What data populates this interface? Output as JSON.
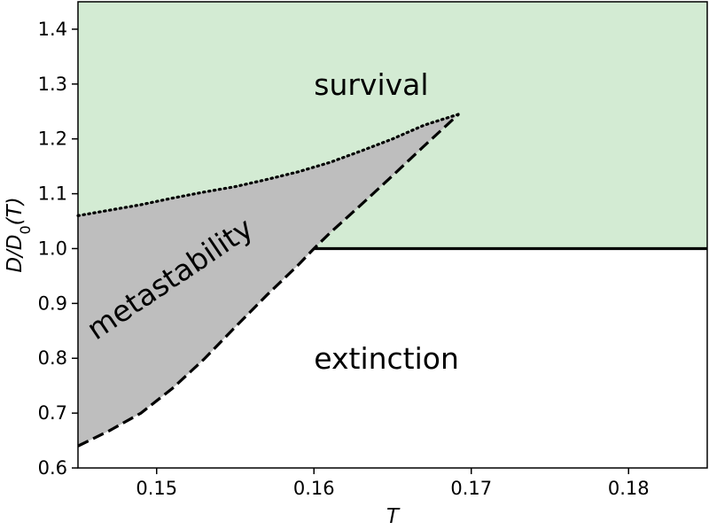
{
  "chart_data": {
    "type": "area",
    "xlabel": "T",
    "ylabel": "D/D0(T)",
    "xlim": [
      0.145,
      0.185
    ],
    "ylim": [
      0.6,
      1.45
    ],
    "xticks": [
      "0.15",
      "0.16",
      "0.17",
      "0.18"
    ],
    "xtick_values": [
      0.15,
      0.16,
      0.17,
      0.18
    ],
    "yticks": [
      "0.6",
      "0.7",
      "0.8",
      "0.9",
      "1.0",
      "1.1",
      "1.2",
      "1.3",
      "1.4"
    ],
    "ytick_values": [
      0.6,
      0.7,
      0.8,
      0.9,
      1.0,
      1.1,
      1.2,
      1.3,
      1.4
    ],
    "grid": false,
    "regions": {
      "survival": {
        "label": "survival",
        "color": "#d3ebd3"
      },
      "metastability": {
        "label": "metastability",
        "color": "#bebebe"
      },
      "extinction": {
        "label": "extinction",
        "color": "#ffffff"
      }
    },
    "series": [
      {
        "style": "dotted",
        "x": [
          0.145,
          0.147,
          0.149,
          0.151,
          0.153,
          0.155,
          0.157,
          0.159,
          0.161,
          0.163,
          0.165,
          0.167,
          0.1692
        ],
        "y": [
          1.06,
          1.07,
          1.08,
          1.092,
          1.103,
          1.113,
          1.126,
          1.14,
          1.157,
          1.178,
          1.2,
          1.225,
          1.245
        ]
      },
      {
        "style": "dashed",
        "x": [
          0.145,
          0.147,
          0.149,
          0.151,
          0.153,
          0.155,
          0.157,
          0.159,
          0.16,
          0.161,
          0.163,
          0.165,
          0.167,
          0.1692
        ],
        "y": [
          0.64,
          0.668,
          0.7,
          0.745,
          0.798,
          0.857,
          0.915,
          0.97,
          1.0,
          1.028,
          1.08,
          1.133,
          1.187,
          1.245
        ]
      },
      {
        "style": "solid",
        "x": [
          0.16,
          0.185
        ],
        "y": [
          1.0,
          1.0
        ]
      }
    ]
  }
}
